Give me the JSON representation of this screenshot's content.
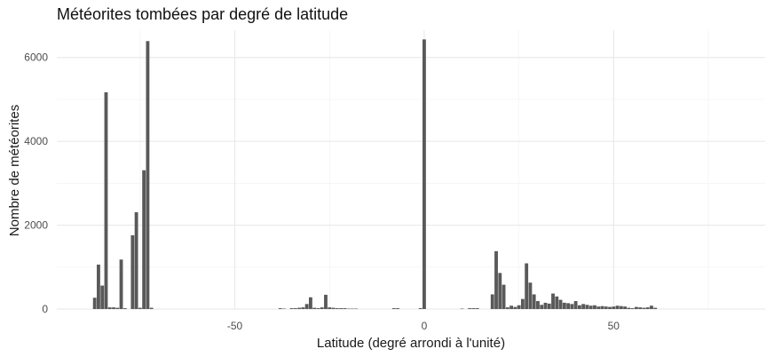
{
  "chart_data": {
    "type": "bar",
    "title": "Météorites tombées par degré de latitude",
    "xlabel": "Latitude (degré arrondi à l'unité)",
    "ylabel": "Nombre de météorites",
    "xlim": [
      -97,
      90
    ],
    "ylim": [
      0,
      6650
    ],
    "x_ticks": [
      -50,
      0,
      50
    ],
    "y_ticks": [
      0,
      2000,
      4000,
      6000
    ],
    "grid": true,
    "bar_color": "#595959",
    "x": [
      -87,
      -86,
      -85,
      -84,
      -83,
      -82,
      -81,
      -80,
      -79,
      -77,
      -76,
      -75,
      -74,
      -73,
      -72,
      -38,
      -37,
      -35,
      -34,
      -33,
      -32,
      -31,
      -30,
      -29,
      -28,
      -27,
      -26,
      -25,
      -24,
      -23,
      -22,
      -21,
      -20,
      -19,
      -18,
      -8,
      -7,
      -1,
      0,
      10,
      12,
      13,
      14,
      18,
      19,
      20,
      21,
      22,
      23,
      24,
      25,
      26,
      27,
      28,
      29,
      30,
      31,
      32,
      33,
      34,
      35,
      36,
      37,
      38,
      39,
      40,
      41,
      42,
      43,
      44,
      45,
      46,
      47,
      48,
      49,
      50,
      51,
      52,
      53,
      54,
      55,
      56,
      57,
      58,
      59,
      60,
      61
    ],
    "values": [
      270,
      1060,
      560,
      5170,
      40,
      40,
      30,
      1180,
      20,
      1760,
      2310,
      30,
      3310,
      6390,
      30,
      20,
      10,
      20,
      20,
      30,
      40,
      120,
      280,
      30,
      20,
      40,
      340,
      40,
      30,
      20,
      20,
      20,
      10,
      10,
      10,
      20,
      20,
      20,
      6430,
      10,
      20,
      20,
      20,
      350,
      1380,
      860,
      580,
      40,
      80,
      50,
      90,
      240,
      1090,
      630,
      350,
      190,
      100,
      150,
      130,
      370,
      300,
      220,
      150,
      140,
      120,
      190,
      90,
      120,
      100,
      80,
      90,
      60,
      70,
      60,
      50,
      60,
      80,
      70,
      60,
      30,
      20,
      50,
      40,
      30,
      40,
      80,
      30
    ]
  }
}
